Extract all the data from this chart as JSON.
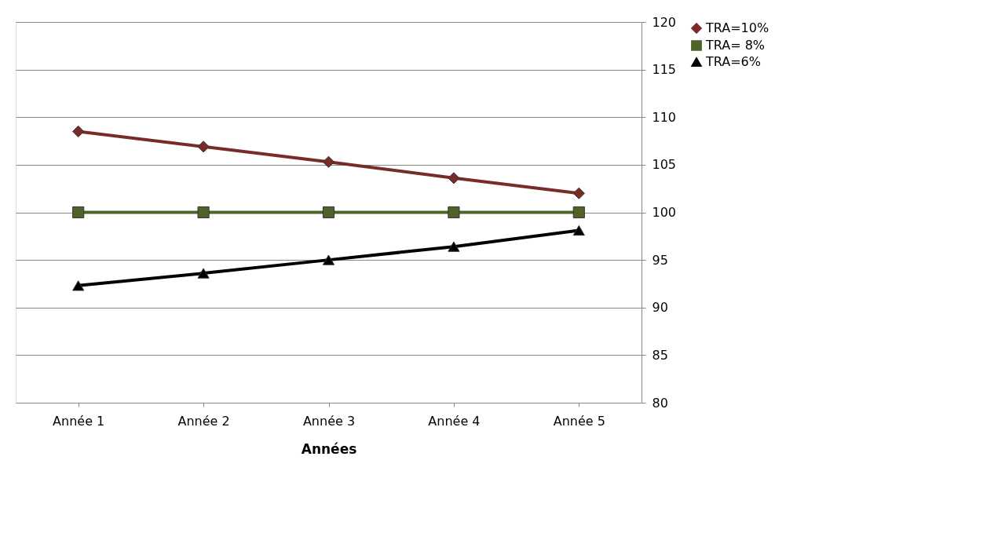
{
  "chart_data": {
    "type": "line",
    "xlabel": "Années",
    "categories": [
      "Année 1",
      "Année 2",
      "Année 3",
      "Année 4",
      "Année 5"
    ],
    "series": [
      {
        "name": "TRA=10%",
        "color": "#772c2a",
        "marker": "diamond",
        "values": [
          108.5,
          106.9,
          105.3,
          103.6,
          102.0
        ]
      },
      {
        "name": "TRA= 8%",
        "color": "#4f6228",
        "marker": "square",
        "values": [
          100,
          100,
          100,
          100,
          100
        ]
      },
      {
        "name": "TRA=6%",
        "color": "#000000",
        "marker": "triangle",
        "values": [
          92.3,
          93.6,
          95.0,
          96.4,
          98.1
        ]
      }
    ],
    "ylim": [
      80,
      120
    ],
    "yticks": [
      80,
      85,
      90,
      95,
      100,
      105,
      110,
      115,
      120
    ],
    "grid": "y",
    "legend": "right",
    "line_style": "solid"
  }
}
